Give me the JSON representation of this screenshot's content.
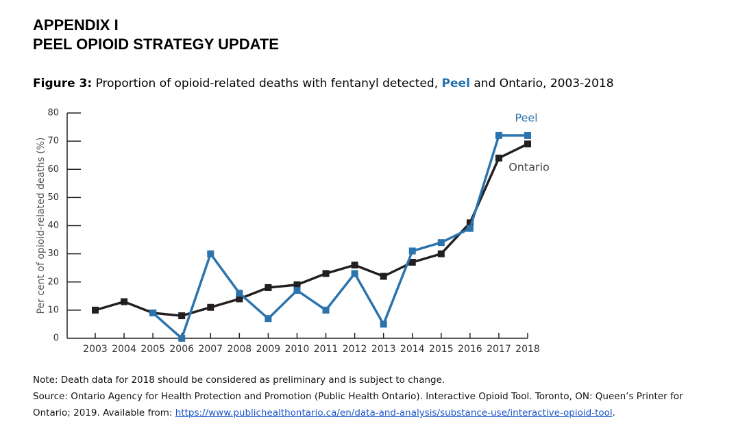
{
  "heading": [
    "APPENDIX I",
    "PEEL OPIOID STRATEGY UPDATE"
  ],
  "chart_data": {
    "type": "line",
    "title": [
      "Figure 3:",
      "Proportion of opioid-related deaths with fentanyl detected,",
      "Peel",
      "and Ontario, 2003-2018"
    ],
    "y_label": "Per cent of opioid-related deaths (%)",
    "categories": [
      "2003",
      "2004",
      "2005",
      "2006",
      "2007",
      "2008",
      "2009",
      "2010",
      "2011",
      "2012",
      "2013",
      "2014",
      "2015",
      "2016",
      "2017",
      "2018"
    ],
    "series": [
      {
        "name": "Peel",
        "color": "#2b73ad",
        "values": [
          null,
          null,
          9,
          0,
          30,
          16,
          7,
          17,
          10,
          23,
          5,
          31,
          34,
          39,
          72,
          72
        ]
      },
      {
        "name": "Ontario",
        "color": "#231f20",
        "values": [
          10,
          13,
          9,
          8,
          11,
          14,
          18,
          19,
          23,
          26,
          22,
          27,
          30,
          41,
          64,
          69
        ]
      }
    ],
    "ylim": [
      0,
      80
    ],
    "yticks": [
      0,
      10,
      20,
      30,
      40,
      50,
      60,
      70,
      80
    ]
  },
  "note": "Note: Death data for 2018 should be considered as preliminary and is subject to change.",
  "source": [
    "Source: Ontario Agency for Health Protection and Promotion (Public Health Ontario). Interactive Opioid Tool. Toronto, ON: Queen’s Printer for",
    "Ontario; 2019. Available from:",
    "https://www.publichealthontario.ca/en/data-and-analysis/substance-use/interactive-opioid-tool",
    "."
  ]
}
